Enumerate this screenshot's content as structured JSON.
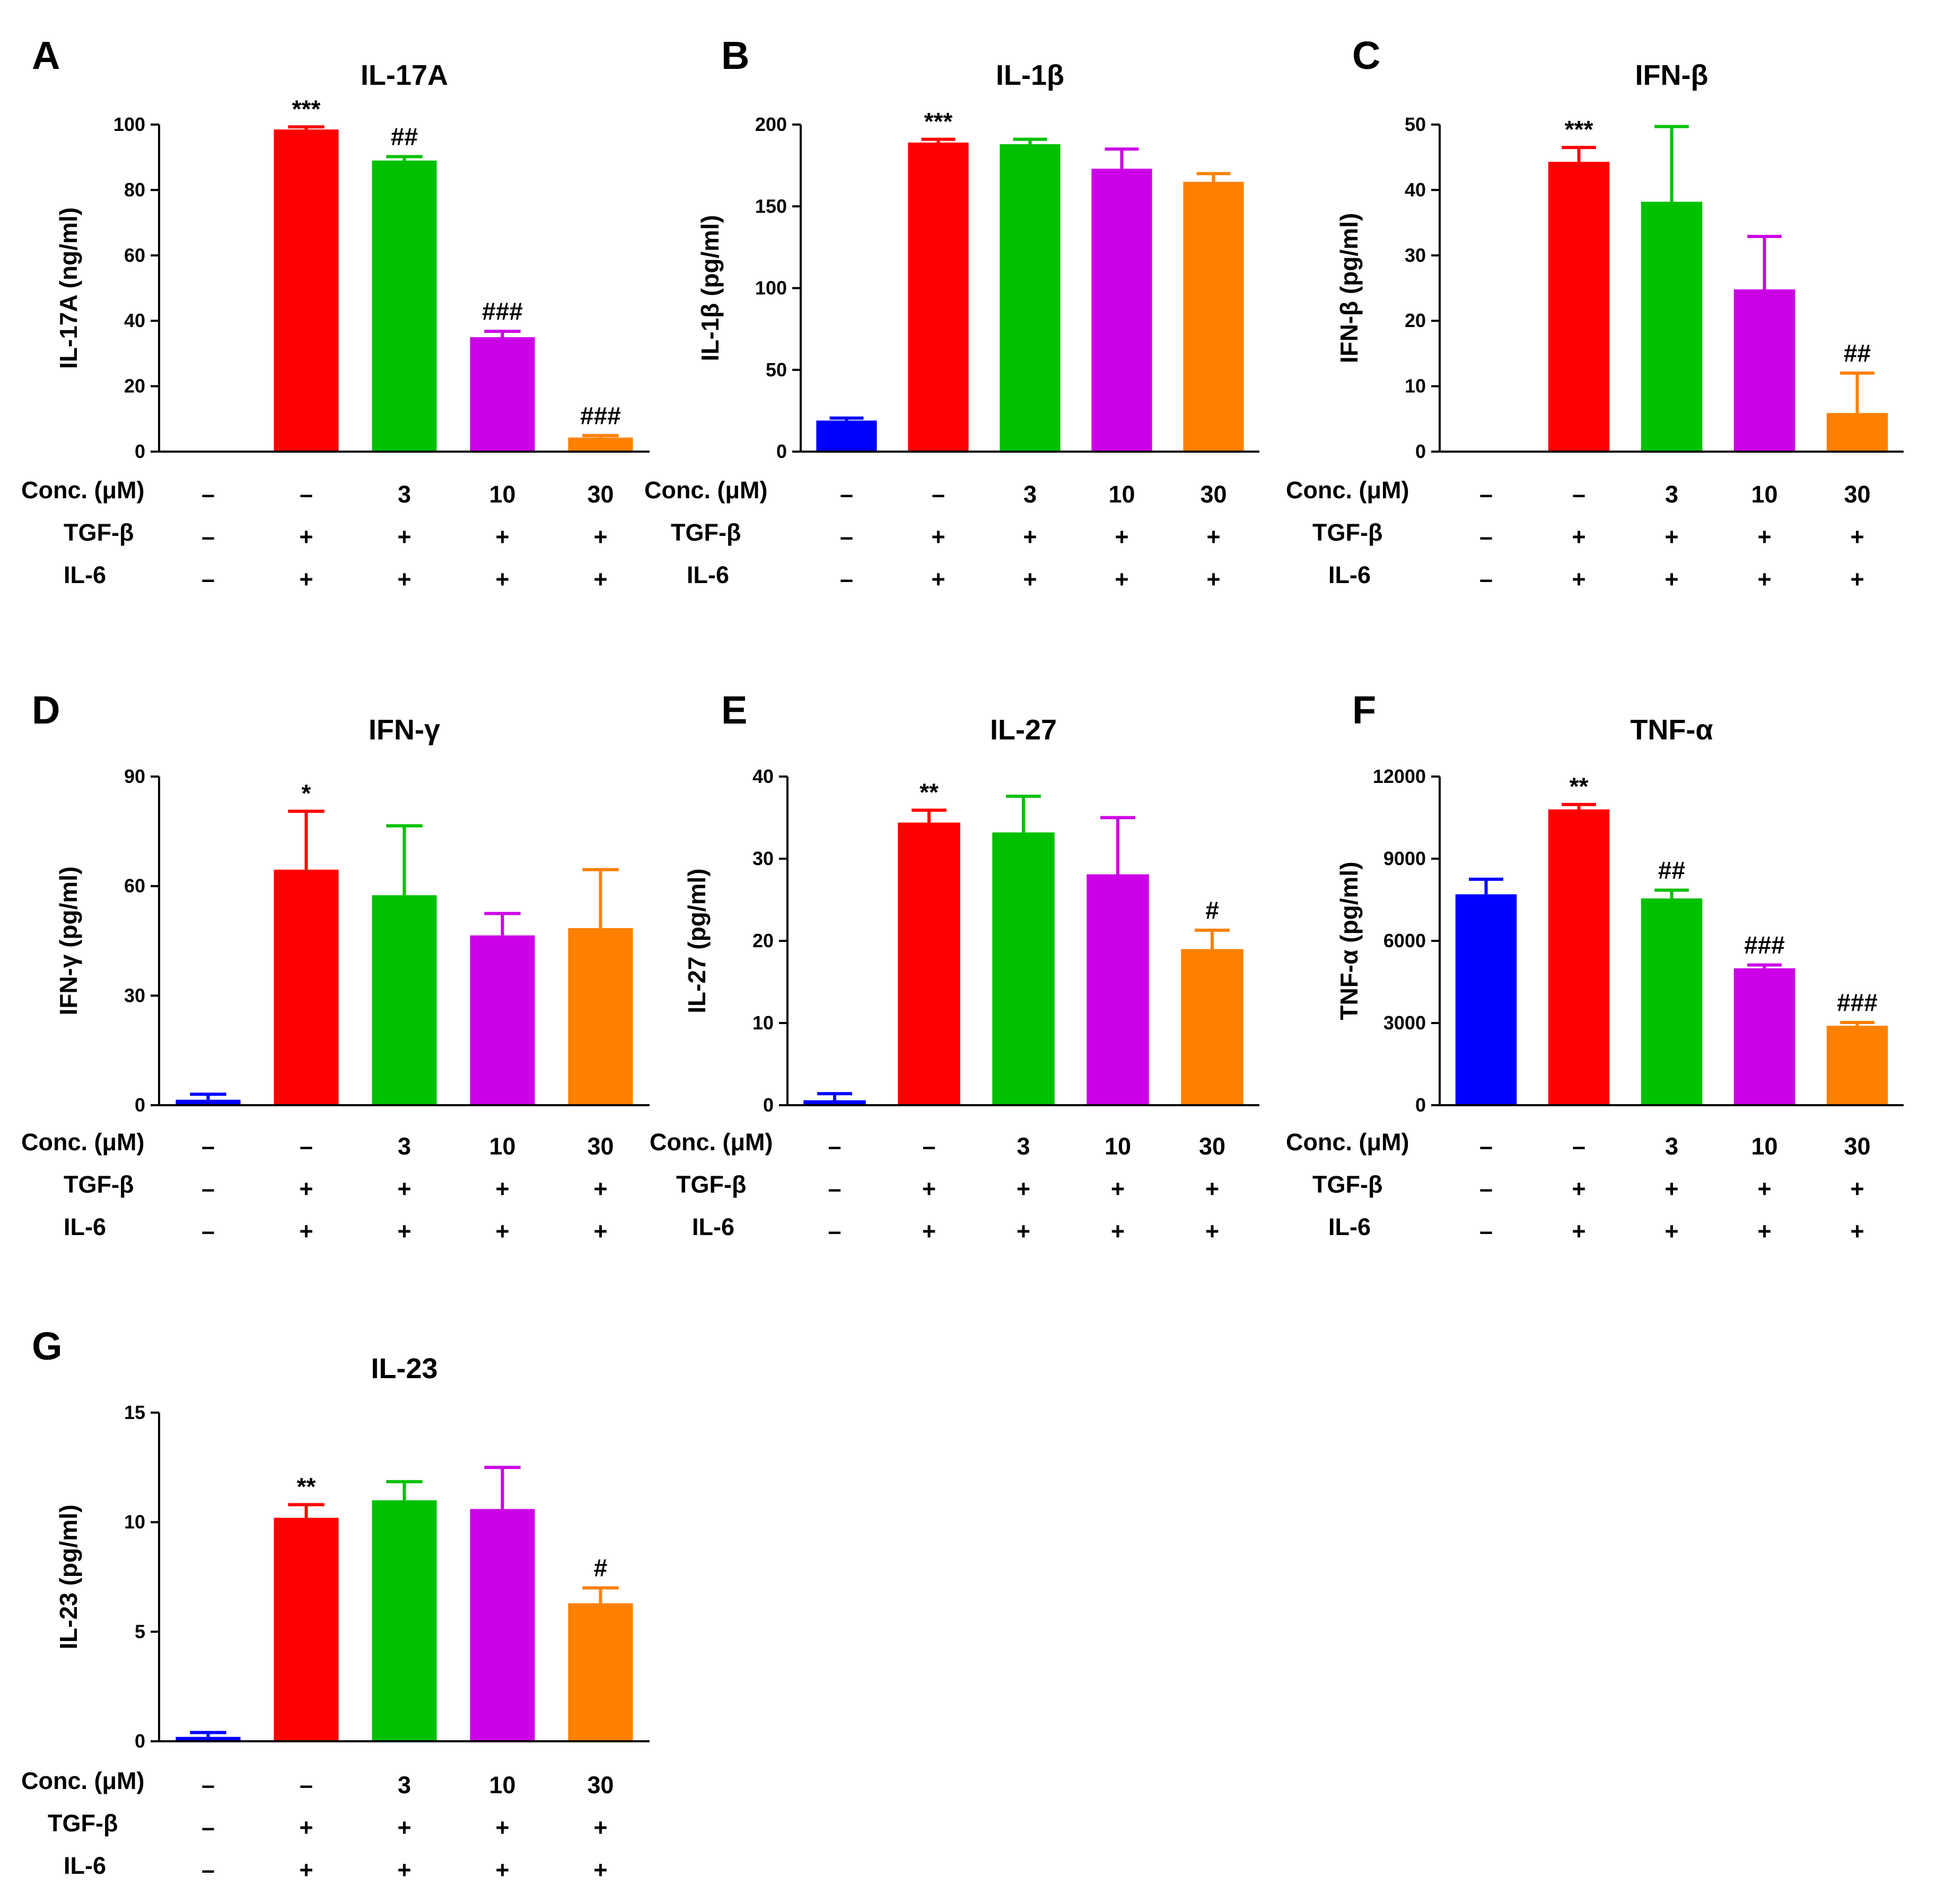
{
  "row_labels": [
    "Conc. (μM)",
    "TGF-β",
    "IL-6"
  ],
  "condition_values": {
    "conc": [
      "–",
      "–",
      "3",
      "10",
      "30"
    ],
    "tgf": [
      "–",
      "+",
      "+",
      "+",
      "+"
    ],
    "il6": [
      "–",
      "+",
      "+",
      "+",
      "+"
    ]
  },
  "bar_colors": [
    "#0000ff",
    "#ff0000",
    "#00c000",
    "#cc00e6",
    "#ff8000"
  ],
  "chart_data": [
    {
      "panel": "A",
      "type": "bar",
      "title": "IL-17A",
      "ylabel": "IL-17A (ng/ml)",
      "ylim": [
        0,
        100
      ],
      "yticks": [
        "0",
        "20",
        "40",
        "60",
        "80",
        "100"
      ],
      "values": [
        0,
        98.5,
        89,
        35,
        4.3
      ],
      "errors": [
        0,
        0.8,
        1.2,
        1.8,
        0.6
      ],
      "significance": [
        "",
        "***",
        "##",
        "###",
        "###"
      ]
    },
    {
      "panel": "B",
      "type": "bar",
      "title": "IL-1β",
      "ylabel": "IL-1β (pg/ml)",
      "ylim": [
        0,
        200
      ],
      "yticks": [
        "0",
        "50",
        "100",
        "150",
        "200"
      ],
      "values": [
        19,
        189,
        188,
        173,
        165
      ],
      "errors": [
        1.5,
        2,
        3,
        12,
        5
      ],
      "significance": [
        "",
        "***",
        "",
        "",
        ""
      ]
    },
    {
      "panel": "C",
      "type": "bar",
      "title": "IFN-β",
      "ylabel": "IFN-β (pg/ml)",
      "ylim": [
        0,
        50
      ],
      "yticks": [
        "0",
        "10",
        "20",
        "30",
        "40",
        "50"
      ],
      "values": [
        0,
        44.3,
        38.2,
        24.8,
        5.9
      ],
      "errors": [
        0,
        2.2,
        11.5,
        8.1,
        6.1
      ],
      "significance": [
        "",
        "***",
        "",
        "",
        "##"
      ]
    },
    {
      "panel": "D",
      "type": "bar",
      "title": "IFN-γ",
      "ylabel": "IFN-γ (pg/ml)",
      "ylim": [
        0,
        90
      ],
      "yticks": [
        "0",
        "30",
        "60",
        "90"
      ],
      "values": [
        1.5,
        64.5,
        57.5,
        46.5,
        48.5
      ],
      "errors": [
        1.5,
        16,
        19,
        6,
        16
      ],
      "significance": [
        "",
        "*",
        "",
        "",
        ""
      ]
    },
    {
      "panel": "E",
      "type": "bar",
      "title": "IL-27",
      "ylabel": "IL-27 (pg/ml)",
      "ylim": [
        0,
        40
      ],
      "yticks": [
        "0",
        "10",
        "20",
        "30",
        "40"
      ],
      "values": [
        0.6,
        34.4,
        33.2,
        28.1,
        19
      ],
      "errors": [
        0.8,
        1.5,
        4.4,
        6.9,
        2.3
      ],
      "significance": [
        "",
        "**",
        "",
        "",
        "#"
      ]
    },
    {
      "panel": "F",
      "type": "bar",
      "title": "TNF-α",
      "ylabel": "TNF-α (pg/ml)",
      "ylim": [
        0,
        12000
      ],
      "yticks": [
        "0",
        "3000",
        "6000",
        "9000",
        "12000"
      ],
      "values": [
        7700,
        10800,
        7550,
        5000,
        2900
      ],
      "errors": [
        550,
        180,
        300,
        120,
        120
      ],
      "significance": [
        "",
        "**",
        "##",
        "###",
        "###"
      ]
    },
    {
      "panel": "G",
      "type": "bar",
      "title": "IL-23",
      "ylabel": "IL-23 (pg/ml)",
      "ylim": [
        0,
        15
      ],
      "yticks": [
        "0",
        "5",
        "10",
        "15"
      ],
      "values": [
        0.2,
        10.2,
        11,
        10.6,
        6.3
      ],
      "errors": [
        0.2,
        0.6,
        0.85,
        1.9,
        0.7
      ],
      "significance": [
        "",
        "**",
        "",
        "",
        "#"
      ]
    }
  ]
}
